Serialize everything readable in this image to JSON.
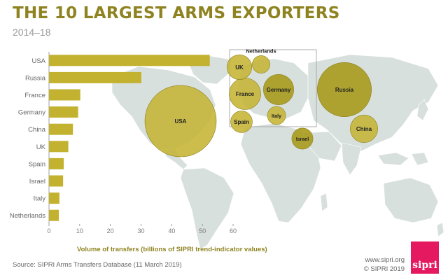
{
  "title": "THE 10 LARGEST ARMS EXPORTERS",
  "subtitle": "2014–18",
  "source": "Source: SIPRI Arms Transfers Database (11 March 2019)",
  "site": "www.sipri.org",
  "copyright": "© SIPRI 2019",
  "logo_text": "sipri",
  "colors": {
    "bar": "#c2b230",
    "bubble": "#a99b1c",
    "bubble_light": "#c6b63a",
    "land": "#d8e0de",
    "title": "#8f8321"
  },
  "chart_data": {
    "type": "bar",
    "orientation": "horizontal",
    "categories": [
      "USA",
      "Russia",
      "France",
      "Germany",
      "China",
      "UK",
      "Spain",
      "Israel",
      "Italy",
      "Netherlands"
    ],
    "values": [
      52.4,
      30.1,
      10.2,
      9.5,
      7.8,
      6.3,
      4.8,
      4.6,
      3.4,
      3.2
    ],
    "xlabel": "Volume of transfers (billions of SIPRI trend-indicator values)",
    "xlim": [
      0,
      60
    ],
    "xticks": [
      "0",
      "10",
      "20",
      "30",
      "40",
      "50",
      "60"
    ],
    "grid": false,
    "map_bubbles": [
      {
        "label": "USA"
      },
      {
        "label": "Russia"
      },
      {
        "label": "France"
      },
      {
        "label": "Germany"
      },
      {
        "label": "China"
      },
      {
        "label": "UK"
      },
      {
        "label": "Spain"
      },
      {
        "label": "Israel"
      },
      {
        "label": "Italy"
      },
      {
        "label": "Netherlands"
      }
    ]
  }
}
